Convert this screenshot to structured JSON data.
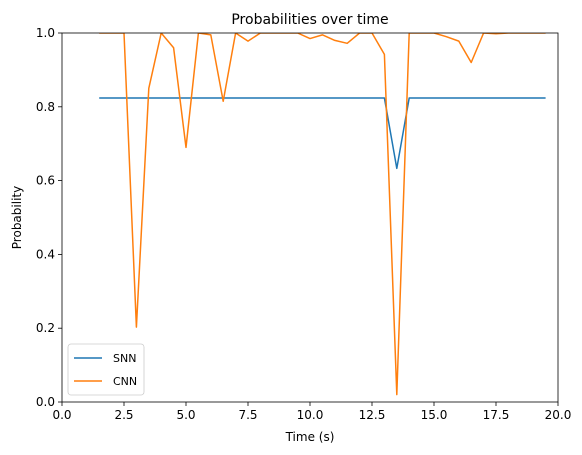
{
  "chart_data": {
    "type": "line",
    "title": "Probabilities over time",
    "xlabel": "Time (s)",
    "ylabel": "Probability",
    "xlim": [
      0,
      20
    ],
    "ylim": [
      0,
      1
    ],
    "xticks": [
      "0.0",
      "2.5",
      "5.0",
      "7.5",
      "10.0",
      "12.5",
      "15.0",
      "17.5",
      "20.0"
    ],
    "yticks": [
      "0.0",
      "0.2",
      "0.4",
      "0.6",
      "0.8",
      "1.0"
    ],
    "grid": false,
    "legend": "bottom-left",
    "series": [
      {
        "name": "SNN",
        "color": "#1f77b4",
        "x": [
          1.5,
          2,
          2.5,
          3,
          3.5,
          4,
          4.5,
          5,
          5.5,
          6,
          6.5,
          7,
          7.5,
          8,
          8.5,
          9,
          9.5,
          10,
          10.5,
          11,
          11.5,
          12,
          12.5,
          13,
          13.5,
          14,
          14.5,
          15,
          15.5,
          16,
          16.5,
          17,
          17.5,
          18,
          18.5,
          19,
          19.5
        ],
        "y": [
          0.824,
          0.824,
          0.824,
          0.824,
          0.824,
          0.824,
          0.824,
          0.824,
          0.824,
          0.824,
          0.824,
          0.824,
          0.824,
          0.824,
          0.824,
          0.824,
          0.824,
          0.824,
          0.824,
          0.824,
          0.824,
          0.824,
          0.824,
          0.824,
          0.633,
          0.824,
          0.824,
          0.824,
          0.824,
          0.824,
          0.824,
          0.824,
          0.824,
          0.824,
          0.824,
          0.824,
          0.824
        ]
      },
      {
        "name": "CNN",
        "color": "#ff7f0e",
        "x": [
          1.5,
          2,
          2.5,
          3,
          3.5,
          4,
          4.5,
          5,
          5.5,
          6,
          6.5,
          7,
          7.5,
          8,
          8.5,
          9,
          9.5,
          10,
          10.5,
          11,
          11.5,
          12,
          12.5,
          13,
          13.5,
          14,
          14.5,
          15,
          15.5,
          16,
          16.5,
          17,
          17.5,
          18,
          18.5,
          19,
          19.5
        ],
        "y": [
          1.0,
          1.0,
          1.0,
          0.203,
          0.85,
          1.0,
          0.96,
          0.69,
          1.0,
          0.995,
          0.815,
          1.0,
          0.978,
          1.0,
          1.0,
          1.0,
          1.0,
          0.985,
          0.995,
          0.98,
          0.972,
          1.0,
          1.0,
          0.942,
          0.02,
          1.0,
          1.0,
          1.0,
          0.99,
          0.978,
          0.92,
          1.0,
          0.998,
          1.0,
          1.0,
          1.0,
          1.0
        ]
      }
    ]
  }
}
